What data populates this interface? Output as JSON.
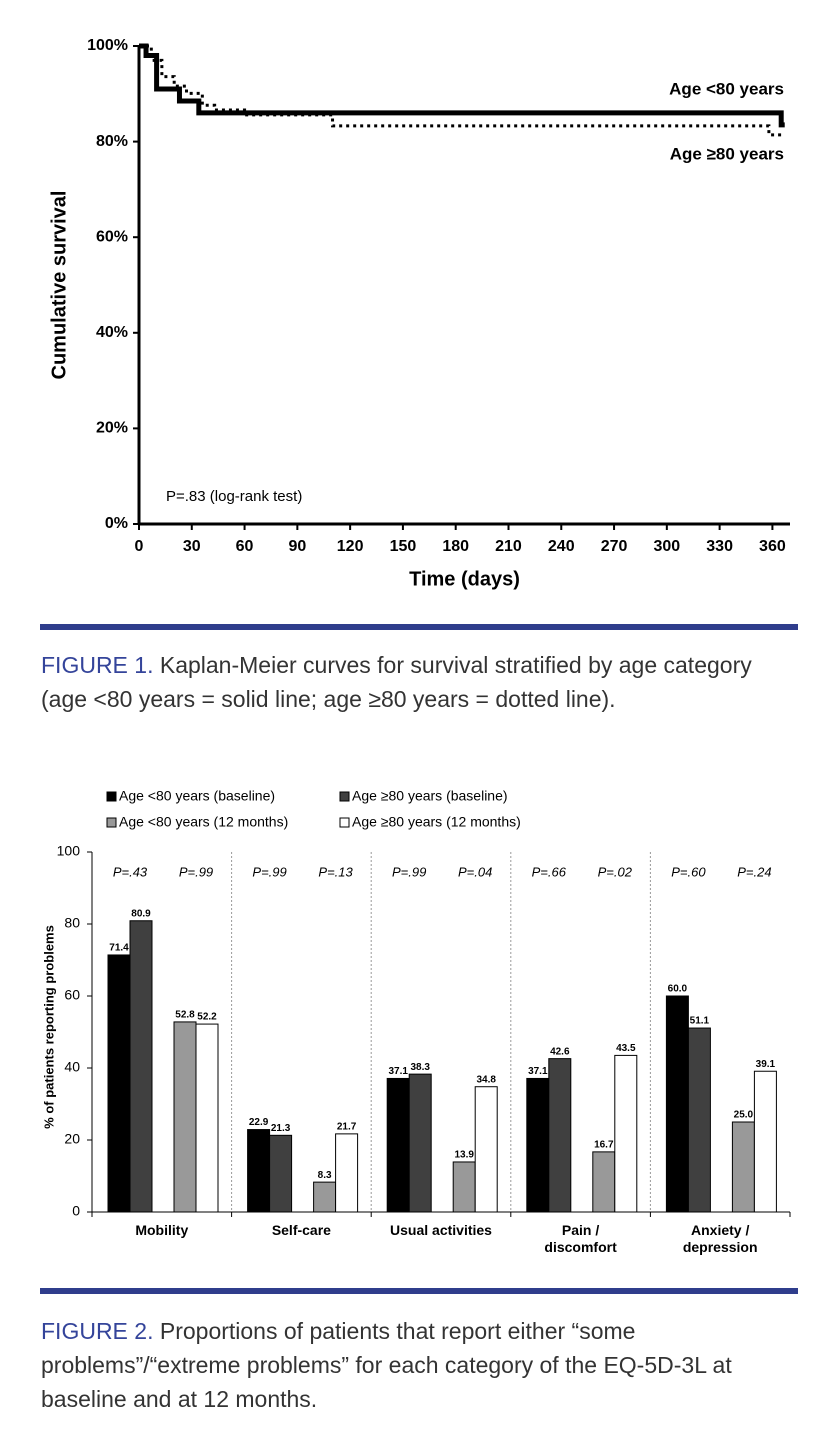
{
  "chart_data": [
    {
      "type": "line",
      "step": "post",
      "figure_label": "FIGURE 1.",
      "caption": "Kaplan-Meier curves for survival stratified by age category (age <80 years = solid line; age ≥80 years = dotted line).",
      "x_label": "Time (days)",
      "y_label": "Cumulative survival",
      "annotation": "P=.83 (log-rank test)",
      "xlim": [
        0,
        370
      ],
      "xticks": [
        0,
        30,
        60,
        90,
        120,
        150,
        180,
        210,
        240,
        270,
        300,
        330,
        360
      ],
      "ylim": [
        0,
        100
      ],
      "yticks": [
        {
          "value": 0,
          "label": "0%"
        },
        {
          "value": 20,
          "label": "20%"
        },
        {
          "value": 40,
          "label": "40%"
        },
        {
          "value": 60,
          "label": "60%"
        },
        {
          "value": 80,
          "label": "80%"
        },
        {
          "value": 100,
          "label": "100%"
        }
      ],
      "series": [
        {
          "name": "Age <80 years",
          "color": "#000000",
          "line_style": "solid",
          "x": [
            0,
            4,
            10,
            23,
            34,
            365,
            367
          ],
          "values": [
            100,
            98,
            91,
            88.5,
            86,
            83.5,
            83.5
          ]
        },
        {
          "name": "Age ≥80 years",
          "color": "#000000",
          "line_style": "dotted",
          "x": [
            0,
            7,
            13,
            20,
            27,
            36,
            43,
            60,
            110,
            358,
            367
          ],
          "values": [
            100,
            97,
            93.6,
            91.6,
            90.1,
            87.6,
            86.6,
            85.6,
            83.3,
            81.4,
            81.4
          ]
        }
      ]
    },
    {
      "type": "bar",
      "figure_label": "FIGURE 2.",
      "caption": "Proportions of patients that report either “some problems”/“extreme problems” for each category of the EQ-5D-3L at baseline and at 12 months.",
      "y_label": "% of patients reporting problems",
      "categories": [
        "Mobility",
        "Self-care",
        "Usual activities",
        "Pain / discomfort",
        "Anxiety / depression"
      ],
      "p_values": [
        [
          "P=.43",
          "P=.99"
        ],
        [
          "P=.99",
          "P=.13"
        ],
        [
          "P=.99",
          "P=.04"
        ],
        [
          "P=.66",
          "P=.02"
        ],
        [
          "P=.60",
          "P=.24"
        ]
      ],
      "ylim": [
        0,
        100
      ],
      "yticks": [
        0,
        20,
        40,
        60,
        80,
        100
      ],
      "series": [
        {
          "name": "Age <80 years (baseline)",
          "color": "#000000",
          "values": [
            71.4,
            22.9,
            37.1,
            37.1,
            60.0
          ],
          "value_labels": [
            "71.4",
            "22.9",
            "37.1",
            "37.1",
            "60.0"
          ]
        },
        {
          "name": "Age ≥80 years (baseline)",
          "color": "#404040",
          "values": [
            80.9,
            21.3,
            38.3,
            42.6,
            51.1
          ],
          "value_labels": [
            "80.9",
            "21.3",
            "38.3",
            "42.6",
            "51.1"
          ]
        },
        {
          "name": "Age <80 years (12 months)",
          "color": "#999999",
          "values": [
            52.8,
            8.3,
            13.9,
            16.7,
            25.0
          ],
          "value_labels": [
            "52.8",
            "8.3",
            "13.9",
            "16.7",
            "25.0"
          ]
        },
        {
          "name": "Age ≥80 years (12 months)",
          "color": "#ffffff",
          "values": [
            52.2,
            21.7,
            34.8,
            43.5,
            39.1
          ],
          "value_labels": [
            "52.2",
            "21.7",
            "34.8",
            "43.5",
            "39.1"
          ]
        }
      ]
    }
  ]
}
